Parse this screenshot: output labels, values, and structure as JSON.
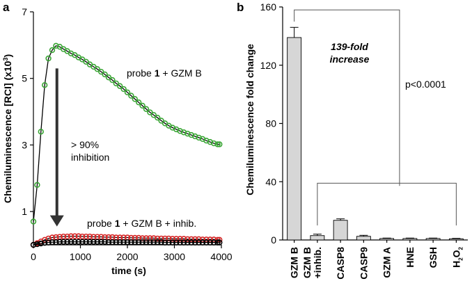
{
  "colors": {
    "green": "#3aa535",
    "red": "#d42a2a",
    "black": "#000000",
    "bar_fill": "#d6d6d6"
  },
  "chart_data": [
    {
      "panel_label": "a",
      "type": "line",
      "xlabel": "time (s)",
      "ylabel_main": "Chemiluminescence [RCI] (x10",
      "ylabel_exp": "3",
      "ylabel_close": ")",
      "xlim": [
        0,
        4000
      ],
      "ylim": [
        0,
        7
      ],
      "xticks": [
        0,
        1000,
        2000,
        3000,
        4000
      ],
      "yticks": [
        1,
        3,
        5,
        7
      ],
      "series": [
        {
          "color": "green",
          "points": [
            [
              0,
              0.7
            ],
            [
              80,
              1.8
            ],
            [
              160,
              3.4
            ],
            [
              240,
              4.8
            ],
            [
              320,
              5.6
            ],
            [
              400,
              5.85
            ],
            [
              480,
              5.98
            ],
            [
              560,
              5.95
            ],
            [
              640,
              5.88
            ],
            [
              720,
              5.82
            ],
            [
              800,
              5.75
            ],
            [
              880,
              5.7
            ],
            [
              960,
              5.63
            ],
            [
              1040,
              5.57
            ],
            [
              1120,
              5.5
            ],
            [
              1200,
              5.42
            ],
            [
              1280,
              5.35
            ],
            [
              1360,
              5.28
            ],
            [
              1440,
              5.2
            ],
            [
              1520,
              5.12
            ],
            [
              1600,
              5.03
            ],
            [
              1680,
              4.95
            ],
            [
              1760,
              4.85
            ],
            [
              1840,
              4.77
            ],
            [
              1920,
              4.68
            ],
            [
              2000,
              4.58
            ],
            [
              2080,
              4.48
            ],
            [
              2160,
              4.38
            ],
            [
              2240,
              4.28
            ],
            [
              2320,
              4.18
            ],
            [
              2400,
              4.08
            ],
            [
              2480,
              3.98
            ],
            [
              2560,
              3.9
            ],
            [
              2640,
              3.82
            ],
            [
              2720,
              3.73
            ],
            [
              2800,
              3.65
            ],
            [
              2880,
              3.58
            ],
            [
              2960,
              3.52
            ],
            [
              3040,
              3.47
            ],
            [
              3120,
              3.42
            ],
            [
              3200,
              3.38
            ],
            [
              3280,
              3.34
            ],
            [
              3360,
              3.3
            ],
            [
              3440,
              3.26
            ],
            [
              3520,
              3.22
            ],
            [
              3600,
              3.18
            ],
            [
              3680,
              3.13
            ],
            [
              3760,
              3.09
            ],
            [
              3840,
              3.05
            ],
            [
              3920,
              3.02
            ],
            [
              3960,
              3.02
            ]
          ]
        },
        {
          "color": "red",
          "points": [
            [
              0,
              0.0
            ],
            [
              80,
              0.05
            ],
            [
              160,
              0.1
            ],
            [
              240,
              0.15
            ],
            [
              320,
              0.19
            ],
            [
              400,
              0.22
            ],
            [
              480,
              0.23
            ],
            [
              560,
              0.24
            ],
            [
              640,
              0.25
            ],
            [
              720,
              0.25
            ],
            [
              800,
              0.26
            ],
            [
              880,
              0.26
            ],
            [
              960,
              0.26
            ],
            [
              1040,
              0.25
            ],
            [
              1120,
              0.25
            ],
            [
              1200,
              0.25
            ],
            [
              1280,
              0.24
            ],
            [
              1360,
              0.24
            ],
            [
              1440,
              0.24
            ],
            [
              1520,
              0.23
            ],
            [
              1600,
              0.23
            ],
            [
              1680,
              0.23
            ],
            [
              1760,
              0.22
            ],
            [
              1840,
              0.22
            ],
            [
              1920,
              0.22
            ],
            [
              2000,
              0.22
            ],
            [
              2080,
              0.21
            ],
            [
              2160,
              0.21
            ],
            [
              2240,
              0.21
            ],
            [
              2320,
              0.2
            ],
            [
              2400,
              0.2
            ],
            [
              2480,
              0.2
            ],
            [
              2560,
              0.2
            ],
            [
              2640,
              0.19
            ],
            [
              2720,
              0.19
            ],
            [
              2800,
              0.19
            ],
            [
              2880,
              0.19
            ],
            [
              2960,
              0.18
            ],
            [
              3040,
              0.18
            ],
            [
              3120,
              0.18
            ],
            [
              3200,
              0.18
            ],
            [
              3280,
              0.17
            ],
            [
              3360,
              0.17
            ],
            [
              3440,
              0.17
            ],
            [
              3520,
              0.17
            ],
            [
              3600,
              0.16
            ],
            [
              3680,
              0.16
            ],
            [
              3760,
              0.16
            ],
            [
              3840,
              0.16
            ],
            [
              3920,
              0.15
            ],
            [
              3960,
              0.15
            ]
          ]
        },
        {
          "color": "black",
          "points": [
            [
              0,
              0.0
            ],
            [
              80,
              0.02
            ],
            [
              160,
              0.04
            ],
            [
              240,
              0.06
            ],
            [
              320,
              0.07
            ],
            [
              400,
              0.08
            ],
            [
              480,
              0.08
            ],
            [
              560,
              0.09
            ],
            [
              640,
              0.09
            ],
            [
              720,
              0.09
            ],
            [
              800,
              0.09
            ],
            [
              880,
              0.09
            ],
            [
              960,
              0.09
            ],
            [
              1040,
              0.09
            ],
            [
              1120,
              0.09
            ],
            [
              1200,
              0.09
            ],
            [
              1280,
              0.09
            ],
            [
              1360,
              0.09
            ],
            [
              1440,
              0.09
            ],
            [
              1520,
              0.09
            ],
            [
              1600,
              0.08
            ],
            [
              1680,
              0.08
            ],
            [
              1760,
              0.08
            ],
            [
              1840,
              0.08
            ],
            [
              1920,
              0.08
            ],
            [
              2000,
              0.08
            ],
            [
              2080,
              0.08
            ],
            [
              2160,
              0.08
            ],
            [
              2240,
              0.08
            ],
            [
              2320,
              0.08
            ],
            [
              2400,
              0.08
            ],
            [
              2480,
              0.08
            ],
            [
              2560,
              0.08
            ],
            [
              2640,
              0.08
            ],
            [
              2720,
              0.08
            ],
            [
              2800,
              0.07
            ],
            [
              2880,
              0.07
            ],
            [
              2960,
              0.07
            ],
            [
              3040,
              0.07
            ],
            [
              3120,
              0.07
            ],
            [
              3200,
              0.07
            ],
            [
              3280,
              0.07
            ],
            [
              3360,
              0.07
            ],
            [
              3440,
              0.07
            ],
            [
              3520,
              0.07
            ],
            [
              3600,
              0.07
            ],
            [
              3680,
              0.07
            ],
            [
              3760,
              0.07
            ],
            [
              3840,
              0.07
            ],
            [
              3920,
              0.07
            ],
            [
              3960,
              0.07
            ]
          ]
        }
      ],
      "annotations": {
        "probe_gzmb_pre": "probe ",
        "probe_num": "1",
        "probe_gzmb_post": " + GZM B",
        "probe_inhib_post": " + GZM B + inhib.",
        "inhibition_line1": "> 90%",
        "inhibition_line2": "inhibition"
      },
      "arrow": {
        "x": 500,
        "y_start": 5.3,
        "y_end": 0.55
      }
    },
    {
      "panel_label": "b",
      "type": "bar",
      "ylabel": "Chemiluminescence fold change",
      "ylim": [
        0,
        160
      ],
      "yticks": [
        0,
        40,
        80,
        120,
        160
      ],
      "categories": [
        "GZM B",
        "GZM B\n+inhib.",
        "CASP8",
        "CASP9",
        "GZM A",
        "HNE",
        "GSH",
        "H2O2"
      ],
      "values": [
        139,
        3,
        13.5,
        2.5,
        1,
        1,
        1,
        0.8
      ],
      "errors": [
        7,
        1,
        1,
        0.7,
        0.3,
        0.3,
        0.3,
        0.3
      ],
      "annotation_fold_line1": "139-fold",
      "annotation_fold_line2": "increase",
      "annotation_p": "p<0.0001",
      "bracket_top_y": 158,
      "bracket_low_y": 39,
      "bracket_join_y": 40
    }
  ]
}
